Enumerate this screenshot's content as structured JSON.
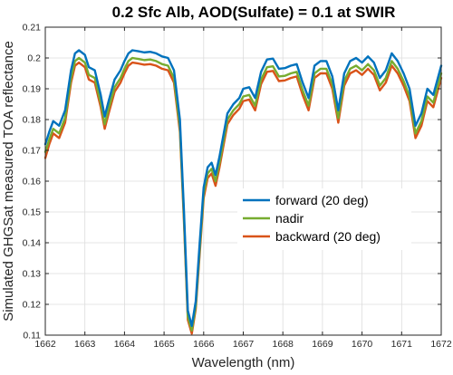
{
  "chart_data": {
    "type": "line",
    "title": "0.2 Sfc Alb, AOD(Sulfate) = 0.1 at SWIR",
    "xlabel": "Wavelength (nm)",
    "ylabel": "Simulated GHGSat measured TOA reflectance",
    "xlim": [
      1662,
      1672
    ],
    "ylim": [
      0.11,
      0.21
    ],
    "xticks": [
      "1662",
      "1663",
      "1664",
      "1665",
      "1666",
      "1667",
      "1668",
      "1669",
      "1670",
      "1671",
      "1672"
    ],
    "yticks": [
      "0.11",
      "0.12",
      "0.13",
      "0.14",
      "0.15",
      "0.16",
      "0.17",
      "0.18",
      "0.19",
      "0.2",
      "0.21"
    ],
    "grid": true,
    "legend_position": "center-right",
    "x": [
      1662.0,
      1662.1,
      1662.2,
      1662.35,
      1662.5,
      1662.65,
      1662.75,
      1662.85,
      1663.0,
      1663.1,
      1663.25,
      1663.4,
      1663.5,
      1663.6,
      1663.75,
      1663.9,
      1664.0,
      1664.1,
      1664.2,
      1664.35,
      1664.5,
      1664.65,
      1664.8,
      1664.95,
      1665.1,
      1665.25,
      1665.4,
      1665.5,
      1665.6,
      1665.7,
      1665.8,
      1665.9,
      1666.0,
      1666.1,
      1666.2,
      1666.3,
      1666.4,
      1666.5,
      1666.6,
      1666.75,
      1666.9,
      1667.0,
      1667.15,
      1667.3,
      1667.45,
      1667.6,
      1667.75,
      1667.9,
      1668.05,
      1668.2,
      1668.35,
      1668.5,
      1668.65,
      1668.8,
      1668.95,
      1669.1,
      1669.25,
      1669.4,
      1669.55,
      1669.7,
      1669.85,
      1670.0,
      1670.15,
      1670.3,
      1670.45,
      1670.6,
      1670.75,
      1670.9,
      1671.05,
      1671.2,
      1671.35,
      1671.5,
      1671.65,
      1671.8,
      1672.0
    ],
    "series": [
      {
        "name": "forward (20 deg)",
        "color": "#0072BD",
        "values": [
          0.172,
          0.176,
          0.1795,
          0.178,
          0.183,
          0.196,
          0.2015,
          0.2025,
          0.201,
          0.197,
          0.196,
          0.188,
          0.181,
          0.186,
          0.193,
          0.196,
          0.199,
          0.2015,
          0.2025,
          0.2022,
          0.2018,
          0.202,
          0.2015,
          0.2005,
          0.2,
          0.196,
          0.18,
          0.151,
          0.118,
          0.113,
          0.121,
          0.14,
          0.158,
          0.1645,
          0.166,
          0.162,
          0.168,
          0.175,
          0.182,
          0.185,
          0.187,
          0.19,
          0.1905,
          0.187,
          0.1955,
          0.1995,
          0.1998,
          0.1965,
          0.1967,
          0.1975,
          0.198,
          0.192,
          0.187,
          0.1975,
          0.199,
          0.199,
          0.194,
          0.183,
          0.195,
          0.199,
          0.2,
          0.1985,
          0.2005,
          0.1985,
          0.1935,
          0.196,
          0.2015,
          0.199,
          0.195,
          0.19,
          0.178,
          0.182,
          0.19,
          0.188,
          0.1975
        ]
      },
      {
        "name": "nadir",
        "color": "#77AC30",
        "values": [
          0.1695,
          0.1735,
          0.177,
          0.1755,
          0.1805,
          0.1935,
          0.199,
          0.2,
          0.1985,
          0.1945,
          0.1935,
          0.1855,
          0.1785,
          0.1835,
          0.1905,
          0.1935,
          0.1965,
          0.199,
          0.2,
          0.1997,
          0.1993,
          0.1995,
          0.199,
          0.198,
          0.1975,
          0.1935,
          0.1775,
          0.149,
          0.116,
          0.1115,
          0.1195,
          0.138,
          0.156,
          0.1625,
          0.164,
          0.16,
          0.166,
          0.173,
          0.18,
          0.183,
          0.185,
          0.1875,
          0.188,
          0.1845,
          0.193,
          0.197,
          0.1973,
          0.194,
          0.1942,
          0.195,
          0.1955,
          0.1895,
          0.1845,
          0.195,
          0.1965,
          0.1965,
          0.1915,
          0.1805,
          0.1925,
          0.1965,
          0.1975,
          0.196,
          0.198,
          0.196,
          0.191,
          0.1935,
          0.199,
          0.1965,
          0.1925,
          0.1875,
          0.1755,
          0.1795,
          0.1875,
          0.1855,
          0.195
        ]
      },
      {
        "name": "backward (20 deg)",
        "color": "#D95319",
        "values": [
          0.1675,
          0.172,
          0.1755,
          0.174,
          0.179,
          0.192,
          0.1975,
          0.1985,
          0.197,
          0.193,
          0.192,
          0.184,
          0.177,
          0.182,
          0.189,
          0.192,
          0.195,
          0.1975,
          0.1985,
          0.1982,
          0.1978,
          0.198,
          0.1975,
          0.1965,
          0.196,
          0.192,
          0.176,
          0.1475,
          0.115,
          0.1105,
          0.1185,
          0.1365,
          0.1545,
          0.161,
          0.1625,
          0.1585,
          0.1645,
          0.1715,
          0.1785,
          0.1815,
          0.1835,
          0.186,
          0.1865,
          0.183,
          0.1915,
          0.1955,
          0.1958,
          0.1925,
          0.1927,
          0.1935,
          0.194,
          0.188,
          0.183,
          0.1935,
          0.195,
          0.195,
          0.19,
          0.179,
          0.191,
          0.195,
          0.196,
          0.1945,
          0.1965,
          0.1945,
          0.1895,
          0.192,
          0.1975,
          0.195,
          0.191,
          0.186,
          0.174,
          0.178,
          0.186,
          0.184,
          0.1935
        ]
      }
    ]
  }
}
